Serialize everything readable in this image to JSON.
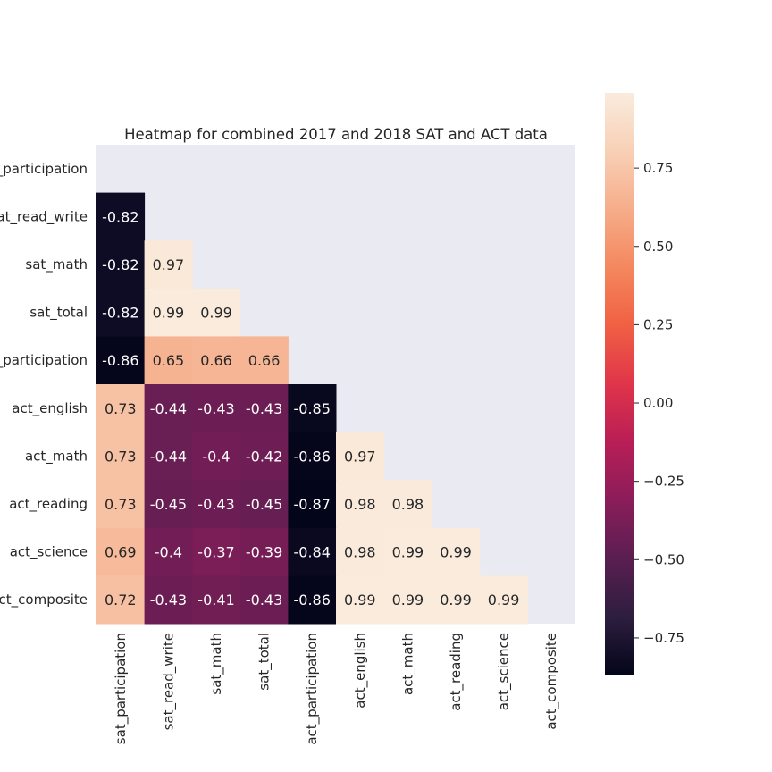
{
  "chart_data": {
    "type": "heatmap",
    "title": "Heatmap for combined 2017 and 2018 SAT and ACT data",
    "row_labels": [
      "sat_participation",
      "sat_read_write",
      "sat_math",
      "sat_total",
      "act_participation",
      "act_english",
      "act_math",
      "act_reading",
      "act_science",
      "act_composite"
    ],
    "col_labels": [
      "sat_participation",
      "sat_read_write",
      "sat_math",
      "sat_total",
      "act_participation",
      "act_english",
      "act_math",
      "act_reading",
      "act_science",
      "act_composite"
    ],
    "mask": "upper-triangle-including-diagonal",
    "values": [
      [
        null,
        null,
        null,
        null,
        null,
        null,
        null,
        null,
        null,
        null
      ],
      [
        -0.82,
        null,
        null,
        null,
        null,
        null,
        null,
        null,
        null,
        null
      ],
      [
        -0.82,
        0.97,
        null,
        null,
        null,
        null,
        null,
        null,
        null,
        null
      ],
      [
        -0.82,
        0.99,
        0.99,
        null,
        null,
        null,
        null,
        null,
        null,
        null
      ],
      [
        -0.86,
        0.65,
        0.66,
        0.66,
        null,
        null,
        null,
        null,
        null,
        null
      ],
      [
        0.73,
        -0.44,
        -0.43,
        -0.43,
        -0.85,
        null,
        null,
        null,
        null,
        null
      ],
      [
        0.73,
        -0.44,
        -0.4,
        -0.42,
        -0.86,
        0.97,
        null,
        null,
        null,
        null
      ],
      [
        0.73,
        -0.45,
        -0.43,
        -0.45,
        -0.87,
        0.98,
        0.98,
        null,
        null,
        null
      ],
      [
        0.69,
        -0.4,
        -0.37,
        -0.39,
        -0.84,
        0.98,
        0.99,
        0.99,
        null,
        null
      ],
      [
        0.72,
        -0.43,
        -0.41,
        -0.43,
        -0.86,
        0.99,
        0.99,
        0.99,
        0.99,
        null
      ]
    ],
    "labels": [
      [
        null,
        null,
        null,
        null,
        null,
        null,
        null,
        null,
        null,
        null
      ],
      [
        "-0.82",
        null,
        null,
        null,
        null,
        null,
        null,
        null,
        null,
        null
      ],
      [
        "-0.82",
        "0.97",
        null,
        null,
        null,
        null,
        null,
        null,
        null,
        null
      ],
      [
        "-0.82",
        "0.99",
        "0.99",
        null,
        null,
        null,
        null,
        null,
        null,
        null
      ],
      [
        "-0.86",
        "0.65",
        "0.66",
        "0.66",
        null,
        null,
        null,
        null,
        null,
        null
      ],
      [
        "0.73",
        "-0.44",
        "-0.43",
        "-0.43",
        "-0.85",
        null,
        null,
        null,
        null,
        null
      ],
      [
        "0.73",
        "-0.44",
        "-0.4",
        "-0.42",
        "-0.86",
        "0.97",
        null,
        null,
        null,
        null
      ],
      [
        "0.73",
        "-0.45",
        "-0.43",
        "-0.45",
        "-0.87",
        "0.98",
        "0.98",
        null,
        null,
        null
      ],
      [
        "0.69",
        "-0.4",
        "-0.37",
        "-0.39",
        "-0.84",
        "0.98",
        "0.99",
        "0.99",
        null,
        null
      ],
      [
        "0.72",
        "-0.43",
        "-0.41",
        "-0.43",
        "-0.86",
        "0.99",
        "0.99",
        "0.99",
        "0.99",
        null
      ]
    ],
    "colormap": "rocket",
    "vmin": -0.87,
    "vmax": 0.99,
    "colorbar": {
      "ticks": [
        0.75,
        0.5,
        0.25,
        0.0,
        -0.25,
        -0.5,
        -0.75
      ],
      "tick_labels": [
        "0.75",
        "0.50",
        "0.25",
        "0.00",
        "−0.25",
        "−0.50",
        "−0.75"
      ]
    },
    "background_color": "#eaeaf2",
    "rocket_stops": [
      "#03051a",
      "#2d1e3e",
      "#5a1e51",
      "#8a1d5a",
      "#b81e56",
      "#e0344a",
      "#f06043",
      "#f4875e",
      "#f6ad8a",
      "#f8d0b6",
      "#faebdd"
    ]
  }
}
